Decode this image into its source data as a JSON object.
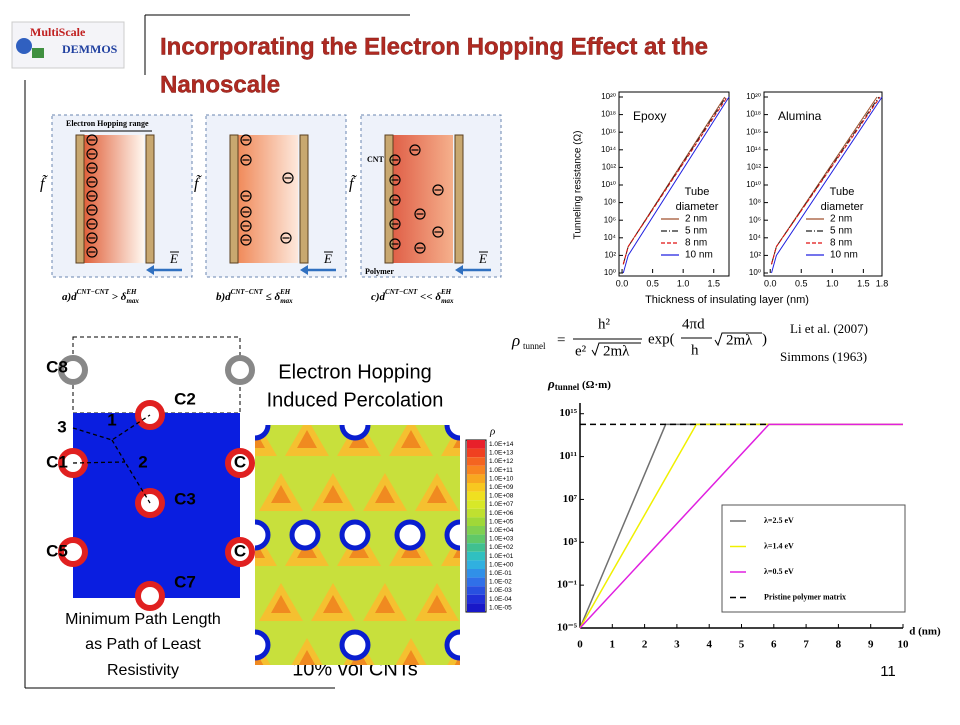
{
  "header": {
    "logo_top": "MultiScale",
    "logo_bottom": "DEMMOS",
    "title_lines": [
      "Incorporating the Electron Hopping Effect at the",
      "Nanoscale"
    ]
  },
  "diagrams": {
    "panels": [
      {
        "caption": [
          "a)d",
          "CNT−CNT",
          " > δ",
          "EH",
          "max"
        ],
        "field_label": "f̃",
        "arrow_label": "E",
        "range_label": "Electron Hopping range"
      },
      {
        "caption": [
          "b)d",
          "CNT−CNT",
          " ≤ δ",
          "EH",
          "max"
        ],
        "field_label": "f̃",
        "arrow_label": "E"
      },
      {
        "caption": [
          "c)d",
          "CNT−CNT",
          " << δ",
          "EH",
          "max"
        ],
        "field_label": "f̃",
        "arrow_label": "E",
        "cnt_label": "CNT",
        "matrix_label": "Polymer"
      }
    ]
  },
  "percolation": {
    "labels": [
      "C8",
      "C2",
      "3",
      "1",
      "C1",
      "2",
      "C",
      "C3",
      "C5",
      "C",
      "C7"
    ],
    "caption_lines": [
      "Minimum  Path Length",
      "as Path of Least",
      "Resistivity"
    ]
  },
  "contour": {
    "title_lines": [
      "Electron Hopping",
      "Induced Percolation"
    ],
    "caption": "10% vol CNTs",
    "legend_title": "ρ",
    "legend_labels": [
      "1.0E+14",
      "1.0E+13",
      "1.0E+12",
      "1.0E+11",
      "1.0E+10",
      "1.0E+09",
      "1.0E+08",
      "1.0E+07",
      "1.0E+06",
      "1.0E+05",
      "1.0E+04",
      "1.0E+03",
      "1.0E+02",
      "1.0E+01",
      "1.0E+00",
      "1.0E-01",
      "1.0E-02",
      "1.0E-03",
      "1.0E-04",
      "1.0E-05"
    ],
    "legend_colors": [
      "#e8202a",
      "#f04020",
      "#f46420",
      "#f88420",
      "#f8a820",
      "#f8c820",
      "#f0e020",
      "#d8e828",
      "#c0e030",
      "#a0d838",
      "#80d050",
      "#60c868",
      "#40c090",
      "#30c0c0",
      "#30b0e0",
      "#3090e8",
      "#3070e8",
      "#2850e0",
      "#2030d8",
      "#1818c8"
    ]
  },
  "formula": {
    "lhs": "ρ",
    "lhs_sub": "tunnel",
    "eq": "=",
    "num": "h²",
    "den": "e²",
    "den_root": "2mλ",
    "exp": "exp(",
    "exp_num": "4πd",
    "exp_den": "h",
    "exp_root": "2mλ",
    "close": ")"
  },
  "references": [
    "Li et al.  (2007)",
    "Simmons  (1963)"
  ],
  "page_number": "11",
  "chart_data": [
    {
      "type": "line",
      "yscale": "log",
      "panel_label": "Epoxy",
      "ylabel": "Tunneling resistance (Ω)",
      "xlabel": "Thickness of insulating layer (nm)",
      "legend_title": [
        "Tube",
        "diameter"
      ],
      "xlim": [
        -0.05,
        1.75
      ],
      "ylim": [
        1,
        1e+20
      ],
      "xticks": [
        {
          "value": 0,
          "label": "0.0"
        },
        0.5,
        {
          "value": 1,
          "label": "1.0"
        },
        1.5
      ],
      "yticks": [
        {
          "value": 1,
          "label": "10⁰"
        },
        {
          "value": 100,
          "label": "10²"
        },
        {
          "value": 10000,
          "label": "10⁴"
        },
        {
          "value": 1000000.0,
          "label": "10⁶"
        },
        {
          "value": 100000000.0,
          "label": "10⁸"
        },
        {
          "value": 10000000000.0,
          "label": "10¹⁰"
        },
        {
          "value": 1000000000000.0,
          "label": "10¹²"
        },
        {
          "value": 100000000000000.0,
          "label": "10¹⁴"
        },
        {
          "value": 1e+16,
          "label": "10¹⁶"
        },
        {
          "value": 1e+18,
          "label": "10¹⁸"
        },
        {
          "value": 1e+20,
          "label": "10²⁰"
        }
      ],
      "series": [
        {
          "name": "2 nm",
          "color": "#a0522d",
          "dash": "",
          "x": [
            0.02,
            0.1,
            1.68
          ],
          "values": [
            10,
            1000,
            1e+20
          ]
        },
        {
          "name": "5 nm",
          "color": "#222222",
          "dash": "6 2 1 2",
          "x": [
            0.02,
            0.1,
            1.7
          ],
          "values": [
            10,
            1000,
            1e+20
          ]
        },
        {
          "name": "8 nm",
          "color": "#e01010",
          "dash": "4 2",
          "x": [
            0.02,
            0.1,
            1.72
          ],
          "values": [
            10,
            1000,
            1e+20
          ]
        },
        {
          "name": "10 nm",
          "color": "#2020e0",
          "dash": "",
          "x": [
            0.02,
            0.1,
            1.75
          ],
          "values": [
            1,
            100,
            1e+20
          ]
        }
      ]
    },
    {
      "type": "line",
      "yscale": "log",
      "panel_label": "Alumina",
      "legend_title": [
        "Tube",
        "diameter"
      ],
      "xlim": [
        -0.1,
        1.8
      ],
      "ylim": [
        1,
        1e+20
      ],
      "xticks": [
        {
          "value": 0,
          "label": "0.0"
        },
        0.5,
        {
          "value": 1,
          "label": "1.0"
        },
        1.5,
        1.8
      ],
      "yticks": [
        {
          "value": 1,
          "label": "10⁰"
        },
        {
          "value": 100,
          "label": "10²"
        },
        {
          "value": 10000,
          "label": "10⁴"
        },
        {
          "value": 1000000.0,
          "label": "10⁶"
        },
        {
          "value": 100000000.0,
          "label": "10⁸"
        },
        {
          "value": 10000000000.0,
          "label": "10¹⁰"
        },
        {
          "value": 1000000000000.0,
          "label": "10¹²"
        },
        {
          "value": 100000000000000.0,
          "label": "10¹⁴"
        },
        {
          "value": 1e+16,
          "label": "10¹⁶"
        },
        {
          "value": 1e+18,
          "label": "10¹⁸"
        },
        {
          "value": 1e+20,
          "label": "10²⁰"
        }
      ],
      "series": [
        {
          "name": "2 nm",
          "color": "#a0522d",
          "dash": "",
          "x": [
            0.02,
            0.1,
            1.72
          ],
          "values": [
            10,
            1000,
            1e+20
          ]
        },
        {
          "name": "5 nm",
          "color": "#222222",
          "dash": "6 2 1 2",
          "x": [
            0.02,
            0.1,
            1.75
          ],
          "values": [
            10,
            1000,
            1e+20
          ]
        },
        {
          "name": "8 nm",
          "color": "#e01010",
          "dash": "4 2",
          "x": [
            0.02,
            0.1,
            1.77
          ],
          "values": [
            10,
            1000,
            1e+20
          ]
        },
        {
          "name": "10 nm",
          "color": "#2020e0",
          "dash": "",
          "x": [
            0.02,
            0.1,
            1.8
          ],
          "values": [
            1,
            100,
            1e+20
          ]
        }
      ]
    },
    {
      "type": "line",
      "yscale": "log",
      "ylabel": {
        "symbol": "ρ",
        "subscript": "tunnel",
        "unit": " (Ω·m)"
      },
      "xlabel": "d (nm)",
      "xlim": [
        0,
        10
      ],
      "ylim": [
        1e-05,
        1e+16
      ],
      "xticks": [
        0,
        1,
        2,
        3,
        4,
        5,
        6,
        7,
        8,
        9,
        10
      ],
      "yticks": [
        {
          "value": 1000000000000000.0,
          "label": "10¹⁵"
        },
        {
          "value": 100000000000.0,
          "label": "10¹¹"
        },
        {
          "value": 10000000.0,
          "label": "10⁷"
        },
        {
          "value": 1000,
          "label": "10³"
        },
        {
          "value": 0.1,
          "label": "10⁻¹"
        },
        {
          "value": 1e-05,
          "label": "10⁻⁵"
        }
      ],
      "series": [
        {
          "name": "λ=2.5 eV",
          "color": "#707070",
          "dash": "",
          "x": [
            0,
            2.65,
            10
          ],
          "values": [
            1e-05,
            100000000000000.0,
            100000000000000.0
          ]
        },
        {
          "name": "λ=1.4 eV",
          "color": "#f0f000",
          "dash": "",
          "x": [
            0,
            3.6,
            10
          ],
          "values": [
            1e-05,
            100000000000000.0,
            100000000000000.0
          ]
        },
        {
          "name": "λ=0.5 eV",
          "color": "#e020e0",
          "dash": "",
          "x": [
            0,
            5.85,
            10
          ],
          "values": [
            1e-05,
            100000000000000.0,
            100000000000000.0
          ]
        },
        {
          "name": "Pristine polymer matrix",
          "color": "#000000",
          "dash": "6 4",
          "x": [
            0,
            5.85
          ],
          "values": [
            100000000000000.0,
            100000000000000.0
          ]
        }
      ]
    }
  ]
}
